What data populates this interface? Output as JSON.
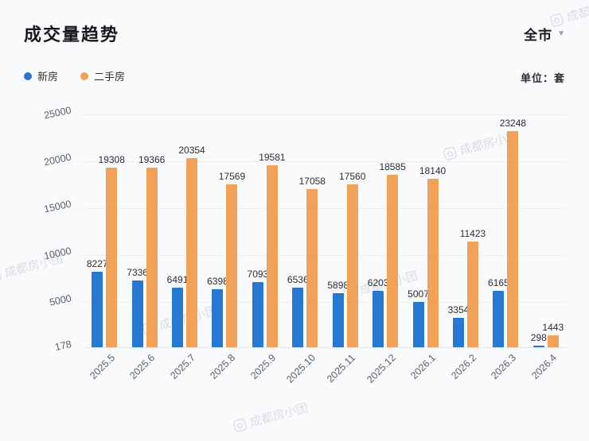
{
  "header": {
    "title": "成交量趋势",
    "region_selector": "全市",
    "unit_label": "单位：套"
  },
  "watermark": {
    "text": "成都房小团"
  },
  "chart_data": {
    "type": "bar",
    "title": "成交量趋势",
    "categories": [
      "2025.5",
      "2025.6",
      "2025.7",
      "2025.8",
      "2025.9",
      "2025.10",
      "2025.11",
      "2025.12",
      "2026.1",
      "2026.2",
      "2026.3",
      "2026.4"
    ],
    "series": [
      {
        "name": "新房",
        "color": "#2878cf",
        "values": [
          8227,
          7336,
          6491,
          6398,
          7093,
          6536,
          5898,
          6203,
          5007,
          3354,
          6165,
          298
        ]
      },
      {
        "name": "二手房",
        "color": "#f0a259",
        "values": [
          19308,
          19366,
          20354,
          17569,
          19581,
          17058,
          17560,
          18585,
          18140,
          11423,
          23248,
          1443
        ]
      }
    ],
    "y_ticks": [
      178,
      5000,
      10000,
      15000,
      20000,
      25000
    ],
    "ylim": [
      178,
      25000
    ],
    "xlabel": "",
    "ylabel": "",
    "grid": true,
    "legend_position": "top-left"
  }
}
